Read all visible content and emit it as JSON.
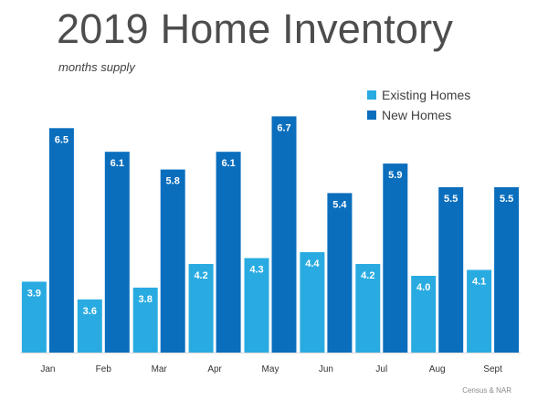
{
  "chart_data": {
    "type": "bar",
    "title": "2019 Home Inventory",
    "subtitle": "months supply",
    "categories": [
      "Jan",
      "Feb",
      "Mar",
      "Apr",
      "May",
      "Jun",
      "Jul",
      "Aug",
      "Sept"
    ],
    "series": [
      {
        "name": "Existing Homes",
        "color": "#29abe2",
        "values": [
          3.9,
          3.6,
          3.8,
          4.2,
          4.3,
          4.4,
          4.2,
          4.0,
          4.1
        ],
        "labels": [
          "3.9",
          "3.6",
          "3.8",
          "4.2",
          "4.3",
          "4.4",
          "4.2",
          "4.0",
          "4.1"
        ]
      },
      {
        "name": "New Homes",
        "color": "#0a6ebd",
        "values": [
          6.5,
          6.1,
          5.8,
          6.1,
          6.7,
          5.4,
          5.9,
          5.5,
          5.5
        ],
        "labels": [
          "6.5",
          "6.1",
          "5.8",
          "6.1",
          "6.7",
          "5.4",
          "5.9",
          "5.5",
          "5.5"
        ]
      }
    ],
    "ylim": [
      2.7,
      7.0
    ],
    "grid": false,
    "legend_position": "top-right",
    "source": "Census & NAR"
  }
}
